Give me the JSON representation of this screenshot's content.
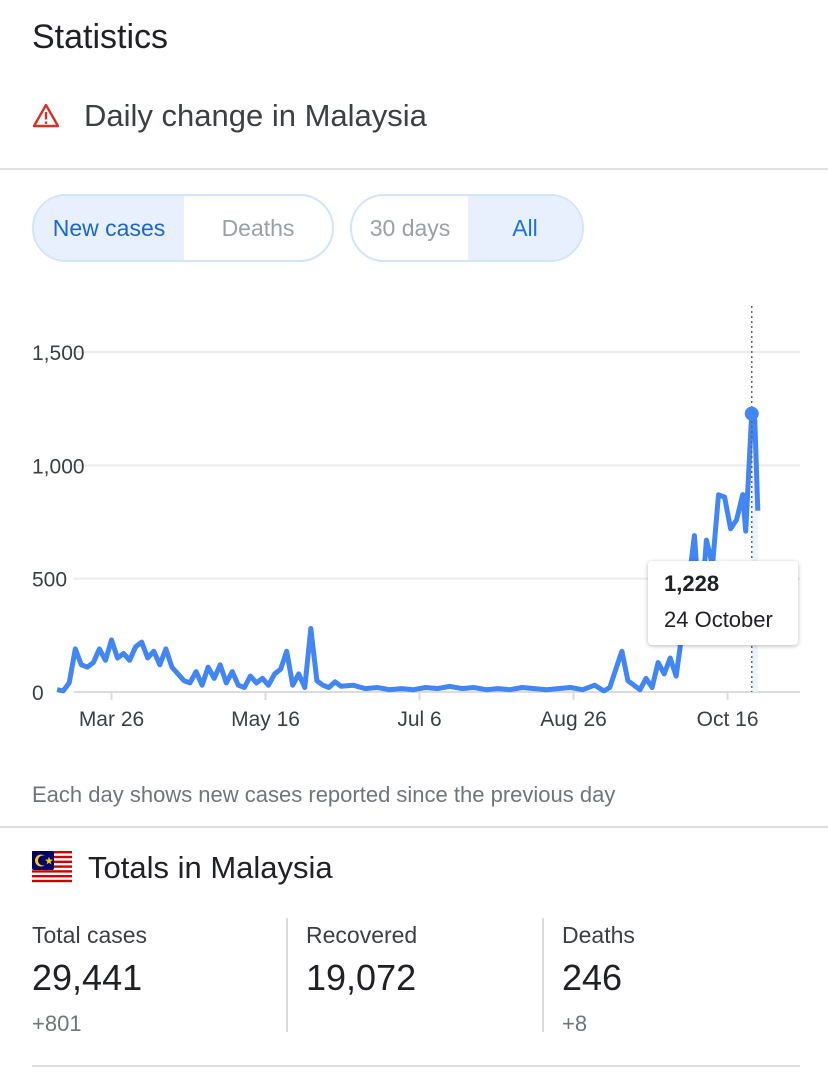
{
  "header": {
    "title": "Statistics",
    "subtitle": "Daily change in Malaysia",
    "warning_icon": "warning-triangle-icon"
  },
  "metric_toggle": {
    "options": [
      "New cases",
      "Deaths"
    ],
    "selected": "New cases"
  },
  "range_toggle": {
    "options": [
      "30 days",
      "All"
    ],
    "selected": "All"
  },
  "tooltip": {
    "value": "1,228",
    "date": "24 October"
  },
  "note": "Each day shows new cases reported since the previous day",
  "totals": {
    "title": "Totals in Malaysia",
    "flag_icon": "malaysia-flag-icon",
    "stats": [
      {
        "label": "Total cases",
        "value": "29,441",
        "change": "+801"
      },
      {
        "label": "Recovered",
        "value": "19,072",
        "change": ""
      },
      {
        "label": "Deaths",
        "value": "246",
        "change": "+8"
      }
    ]
  },
  "colors": {
    "line": "#4285f4",
    "accent": "#1a73e8",
    "warning": "#d93025",
    "grid": "#ececec"
  },
  "chart_data": {
    "type": "line",
    "ylim": [
      0,
      1650
    ],
    "yticks": [
      0,
      500,
      1000,
      1500
    ],
    "ytick_labels": [
      "0",
      "500",
      "1,000",
      "1,500"
    ],
    "xticks": [
      "Mar 26",
      "May 16",
      "Jul 6",
      "Aug 26",
      "Oct 16"
    ],
    "series": [
      {
        "x": [
          "2020-03-08",
          "2020-03-10",
          "2020-03-12",
          "2020-03-14",
          "2020-03-16",
          "2020-03-18",
          "2020-03-20",
          "2020-03-22",
          "2020-03-24",
          "2020-03-26",
          "2020-03-28",
          "2020-03-30",
          "2020-04-01",
          "2020-04-03",
          "2020-04-05",
          "2020-04-07",
          "2020-04-09",
          "2020-04-11",
          "2020-04-13",
          "2020-04-15",
          "2020-04-17",
          "2020-04-19",
          "2020-04-21",
          "2020-04-23",
          "2020-04-25",
          "2020-04-27",
          "2020-04-29",
          "2020-05-01",
          "2020-05-03",
          "2020-05-05",
          "2020-05-07",
          "2020-05-09",
          "2020-05-11",
          "2020-05-13",
          "2020-05-15",
          "2020-05-17",
          "2020-05-19",
          "2020-05-21",
          "2020-05-23",
          "2020-05-25",
          "2020-05-27",
          "2020-05-29",
          "2020-05-31",
          "2020-06-02",
          "2020-06-04",
          "2020-06-06",
          "2020-06-08",
          "2020-06-10",
          "2020-06-14",
          "2020-06-18",
          "2020-06-22",
          "2020-06-26",
          "2020-06-30",
          "2020-07-04",
          "2020-07-08",
          "2020-07-12",
          "2020-07-16",
          "2020-07-20",
          "2020-07-24",
          "2020-07-28",
          "2020-08-01",
          "2020-08-05",
          "2020-08-09",
          "2020-08-13",
          "2020-08-17",
          "2020-08-21",
          "2020-08-25",
          "2020-08-29",
          "2020-09-02",
          "2020-09-05",
          "2020-09-07",
          "2020-09-09",
          "2020-09-11",
          "2020-09-13",
          "2020-09-15",
          "2020-09-17",
          "2020-09-19",
          "2020-09-21",
          "2020-09-23",
          "2020-09-25",
          "2020-09-27",
          "2020-09-29",
          "2020-10-01",
          "2020-10-03",
          "2020-10-05",
          "2020-10-07",
          "2020-10-09",
          "2020-10-11",
          "2020-10-13",
          "2020-10-15",
          "2020-10-17",
          "2020-10-19",
          "2020-10-21",
          "2020-10-22",
          "2020-10-24",
          "2020-10-25",
          "2020-10-26"
        ],
        "values": [
          10,
          5,
          40,
          190,
          120,
          110,
          130,
          190,
          140,
          230,
          150,
          170,
          140,
          200,
          220,
          150,
          180,
          120,
          190,
          110,
          80,
          50,
          40,
          90,
          30,
          110,
          60,
          120,
          40,
          90,
          30,
          20,
          70,
          40,
          60,
          30,
          80,
          100,
          180,
          30,
          80,
          20,
          280,
          50,
          30,
          20,
          45,
          25,
          30,
          15,
          20,
          10,
          15,
          10,
          20,
          15,
          25,
          15,
          20,
          10,
          15,
          10,
          20,
          15,
          10,
          15,
          20,
          10,
          30,
          5,
          20,
          100,
          180,
          50,
          30,
          10,
          60,
          20,
          130,
          80,
          150,
          70,
          270,
          470,
          690,
          320,
          670,
          560,
          870,
          860,
          720,
          760,
          871,
          710,
          1228,
          1200,
          800
        ]
      }
    ],
    "highlight": {
      "x": "2020-10-24",
      "y": 1228
    }
  }
}
